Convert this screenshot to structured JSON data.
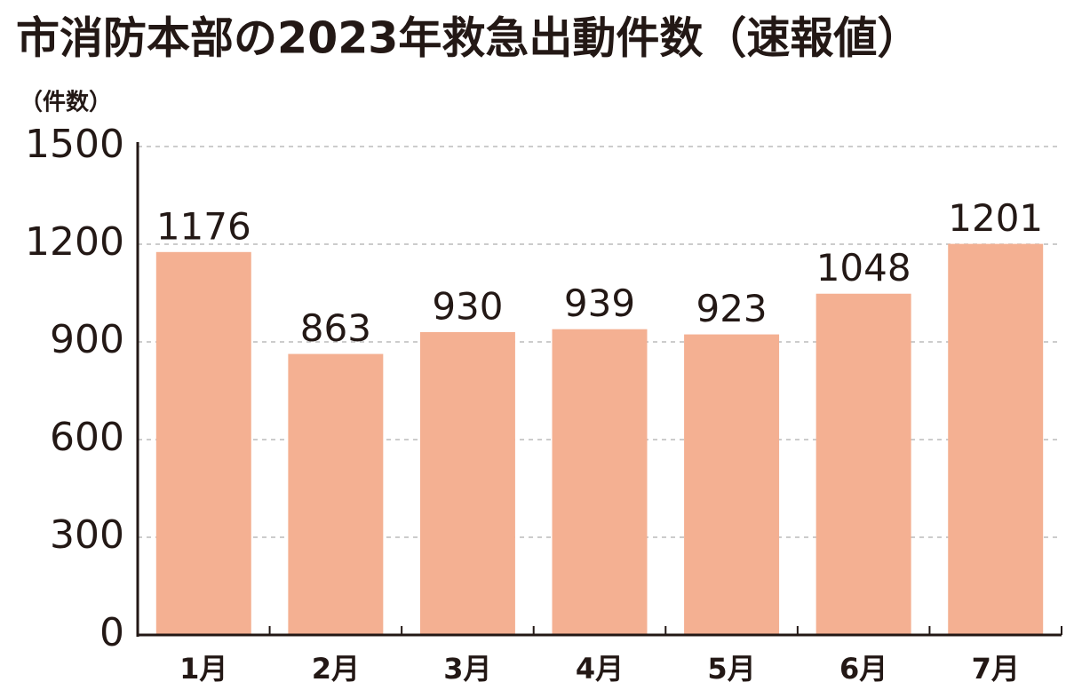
{
  "chart_data": {
    "type": "bar",
    "title": "市消防本部の2023年救急出動件数（速報値）",
    "y_label": "（件数）",
    "categories": [
      "1月",
      "2月",
      "3月",
      "4月",
      "5月",
      "6月",
      "7月"
    ],
    "values": [
      1176,
      863,
      930,
      939,
      923,
      1048,
      1201
    ],
    "color": "#f4b092",
    "ylim": [
      0,
      1500
    ],
    "yticks": [
      0,
      300,
      600,
      900,
      1200,
      1500
    ],
    "grid": true
  }
}
